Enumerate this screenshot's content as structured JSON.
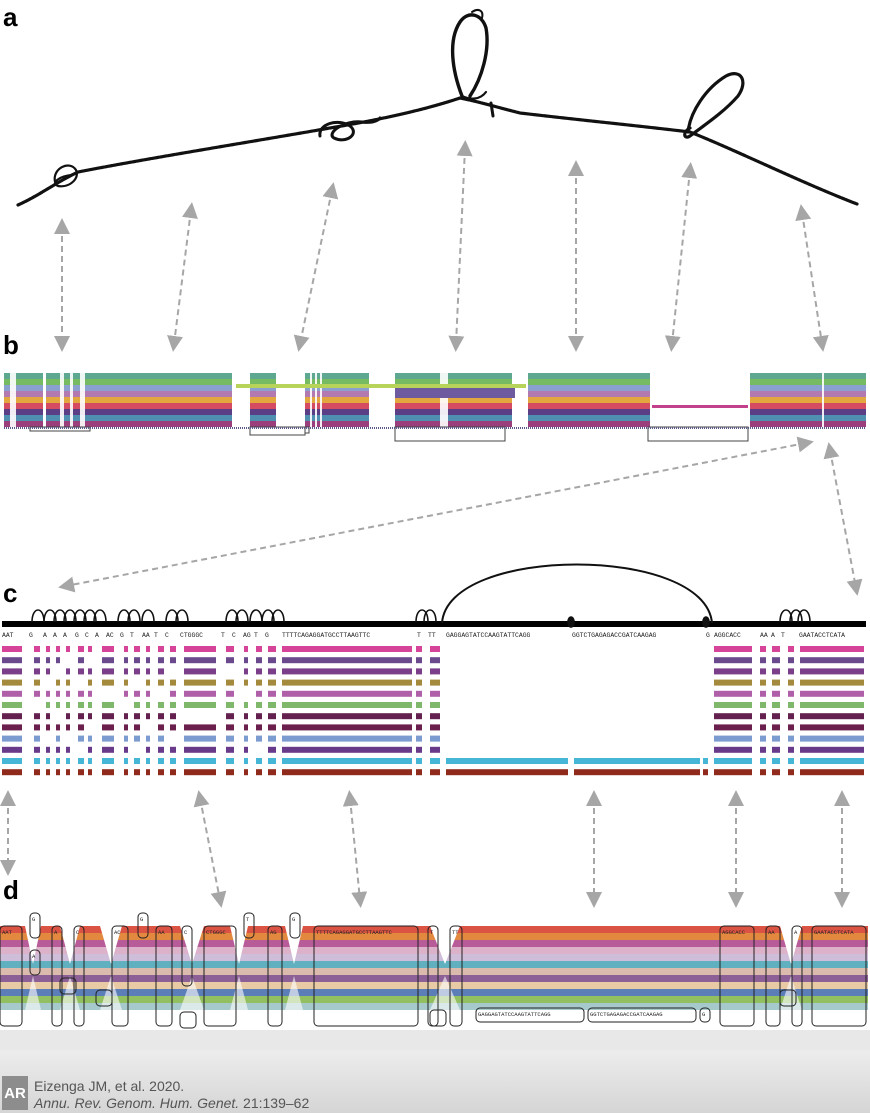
{
  "panels": {
    "a": "a",
    "b": "b",
    "c": "c",
    "d": "d"
  },
  "panel_c": {
    "sequence_labels": [
      "AAT",
      "G",
      "A",
      "A",
      "A",
      "G",
      "C",
      "A",
      "AC",
      "G",
      "T",
      "AA",
      "T",
      "C",
      "CTGGGC",
      "T",
      "C",
      "AG",
      "T",
      "G",
      "TTTTCAGAGGATGCCTTAAGTTC",
      "T",
      "TT",
      "GAGGAGTATCCAAGTATTCAGG",
      "GGTCTGAGAGACCGATCAAGAG",
      "G",
      "AGGCACC",
      "AA",
      "A",
      "T",
      "GAATACCTCATA"
    ],
    "track_colors": [
      "#d6449a",
      "#6a4a8c",
      "#7a3e8a",
      "#a48a3c",
      "#b060a8",
      "#7fb86a",
      "#64204e",
      "#6a1f4c",
      "#7c9bd0",
      "#6a3a8a",
      "#45b6d6",
      "#8f2a1c"
    ]
  },
  "panel_d": {
    "node_labels": [
      "AAT",
      "G",
      "A",
      "A",
      "C",
      "AC",
      "G",
      "AA",
      "C",
      "CTGGGC",
      "T",
      "AG",
      "G",
      "TTTTCAGAGGATGCCTTAAGTTC",
      "T",
      "TT",
      "AGGCACC",
      "AA",
      "A",
      "GAATACCTCATA",
      "GAGGAGTATCCAAGTATTCAGG",
      "GGTCTGAGAGACCGATCAAGAG",
      "G"
    ],
    "path_colors": [
      "#d7402f",
      "#e07b2a",
      "#b04a8e",
      "#d8a9c4",
      "#c9b7d6",
      "#4fa7b8",
      "#d6b4a4",
      "#7f4f8c",
      "#e5c49a",
      "#4a70b0",
      "#86b84e",
      "#9cc3c7"
    ]
  },
  "citation": {
    "logo": "AR",
    "authors": "Eizenga JM, et al. 2020.",
    "journal": "Annu. Rev. Genom. Hum. Genet.",
    "volume": " 21:139–62"
  }
}
